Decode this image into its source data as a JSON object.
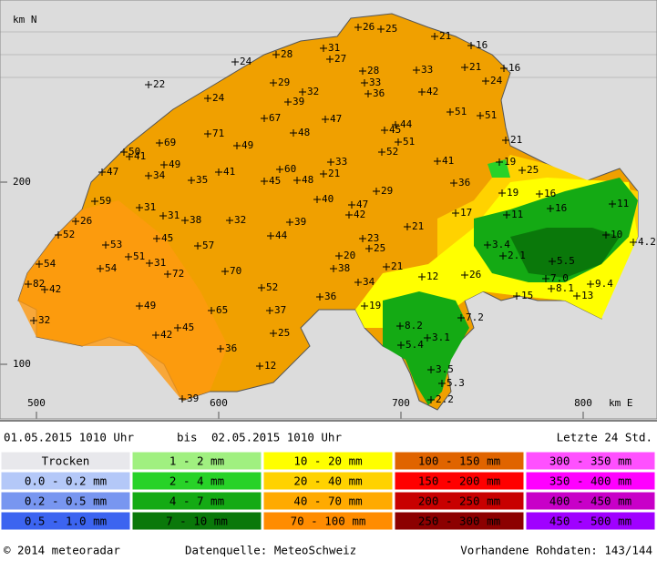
{
  "header": {
    "start": "01.05.2015 1010 Uhr",
    "separator": "bis",
    "end": "02.05.2015 1010 Uhr",
    "period": "Letzte 24 Std."
  },
  "axes": {
    "y_title": "km N",
    "x_title": "km E",
    "yticks": [
      200,
      100
    ],
    "xticks": [
      500,
      600,
      700,
      800
    ]
  },
  "stations": {
    "values": [
      26,
      25,
      21,
      16,
      28,
      31,
      27,
      24,
      16,
      21,
      33,
      28,
      22,
      29,
      33,
      24,
      32,
      24,
      39,
      36,
      42,
      51,
      51,
      67,
      47,
      45,
      71,
      48,
      44,
      69,
      50,
      51,
      41,
      49,
      52,
      49,
      47,
      34,
      60,
      41,
      21,
      19,
      41,
      21,
      33,
      35,
      45,
      48,
      36,
      25,
      29,
      59,
      31,
      40,
      47,
      42,
      19,
      16,
      16,
      11,
      26,
      31,
      38,
      32,
      39,
      17,
      11,
      21,
      52,
      53,
      45,
      57,
      44,
      23,
      25,
      3.4,
      10,
      4.2,
      54,
      54,
      51,
      31,
      20,
      2.1,
      82,
      42,
      72,
      70,
      21,
      38,
      5.5,
      26,
      12,
      34,
      7.0,
      8.1,
      9.4,
      13,
      15,
      52,
      36,
      49,
      19,
      65,
      37,
      32,
      7.2,
      8.2,
      45,
      25,
      42,
      3.1,
      5.4,
      36,
      12,
      3.5,
      5.3,
      39,
      2.2
    ],
    "value_labels": [
      "26",
      "25",
      "21",
      "16",
      "28",
      "31",
      "27",
      "24",
      "16",
      "21",
      "33",
      "28",
      "22",
      "29",
      "33",
      "24",
      "32",
      "24",
      "39",
      "36",
      "42",
      "51",
      "51",
      "67",
      "47",
      "45",
      "71",
      "48",
      "44",
      "69",
      "50",
      "51",
      "41",
      "49",
      "52",
      "49",
      "47",
      "34",
      "60",
      "41",
      "21",
      "19",
      "41",
      "21",
      "33",
      "35",
      "45",
      "48",
      "36",
      "25",
      "29",
      "59",
      "31",
      "40",
      "47",
      "42",
      "19",
      "16",
      "16",
      "11",
      "26",
      "31",
      "38",
      "32",
      "39",
      "17",
      "11",
      "21",
      "52",
      "53",
      "45",
      "57",
      "44",
      "23",
      "25",
      "3.4",
      "10",
      "4.2",
      "54",
      "54",
      "51",
      "31",
      "20",
      "2.1",
      "82",
      "42",
      "72",
      "70",
      "21",
      "38",
      "5.5",
      "26",
      "12",
      "34",
      "7.0",
      "8.1",
      "9.4",
      "13",
      "15",
      "52",
      "36",
      "49",
      "19",
      "65",
      "37",
      "32",
      "7.2",
      "8.2",
      "45",
      "25",
      "42",
      "3.1",
      "5.4",
      "36",
      "12",
      "3.5",
      "5.3",
      "39",
      "2.2"
    ]
  },
  "legend": {
    "columns": [
      [
        {
          "label": "Trocken",
          "color": "#e8e8ec"
        },
        {
          "label": "0.0 - 0.2 mm",
          "color": "#b4c8f8"
        },
        {
          "label": "0.2 - 0.5 mm",
          "color": "#7896f0"
        },
        {
          "label": "0.5 - 1.0 mm",
          "color": "#3c64f0"
        }
      ],
      [
        {
          "label": "1 - 2 mm",
          "color": "#a0f080"
        },
        {
          "label": "2 - 4 mm",
          "color": "#28d228"
        },
        {
          "label": "4 - 7 mm",
          "color": "#14aa14"
        },
        {
          "label": "7 - 10 mm",
          "color": "#0a780a"
        }
      ],
      [
        {
          "label": "10 - 20 mm",
          "color": "#ffff00"
        },
        {
          "label": "20 - 40 mm",
          "color": "#ffd200"
        },
        {
          "label": "40 - 70 mm",
          "color": "#ffaa00"
        },
        {
          "label": "70 - 100 mm",
          "color": "#ff8c00"
        }
      ],
      [
        {
          "label": "100 - 150 mm",
          "color": "#e06400"
        },
        {
          "label": "150 - 200 mm",
          "color": "#ff0000"
        },
        {
          "label": "200 - 250 mm",
          "color": "#c80000"
        },
        {
          "label": "250 - 300 mm",
          "color": "#8c0000"
        }
      ],
      [
        {
          "label": "300 - 350 mm",
          "color": "#ff50ff"
        },
        {
          "label": "350 - 400 mm",
          "color": "#ff00ff"
        },
        {
          "label": "400 - 450 mm",
          "color": "#c800c8"
        },
        {
          "label": "450 - 500 mm",
          "color": "#a000ff"
        }
      ]
    ]
  },
  "footer": {
    "copyright": "© 2014 meteoradar",
    "source": "Datenquelle: MeteoSchweiz",
    "raw_data": "Vorhandene Rohdaten: 143/144"
  }
}
